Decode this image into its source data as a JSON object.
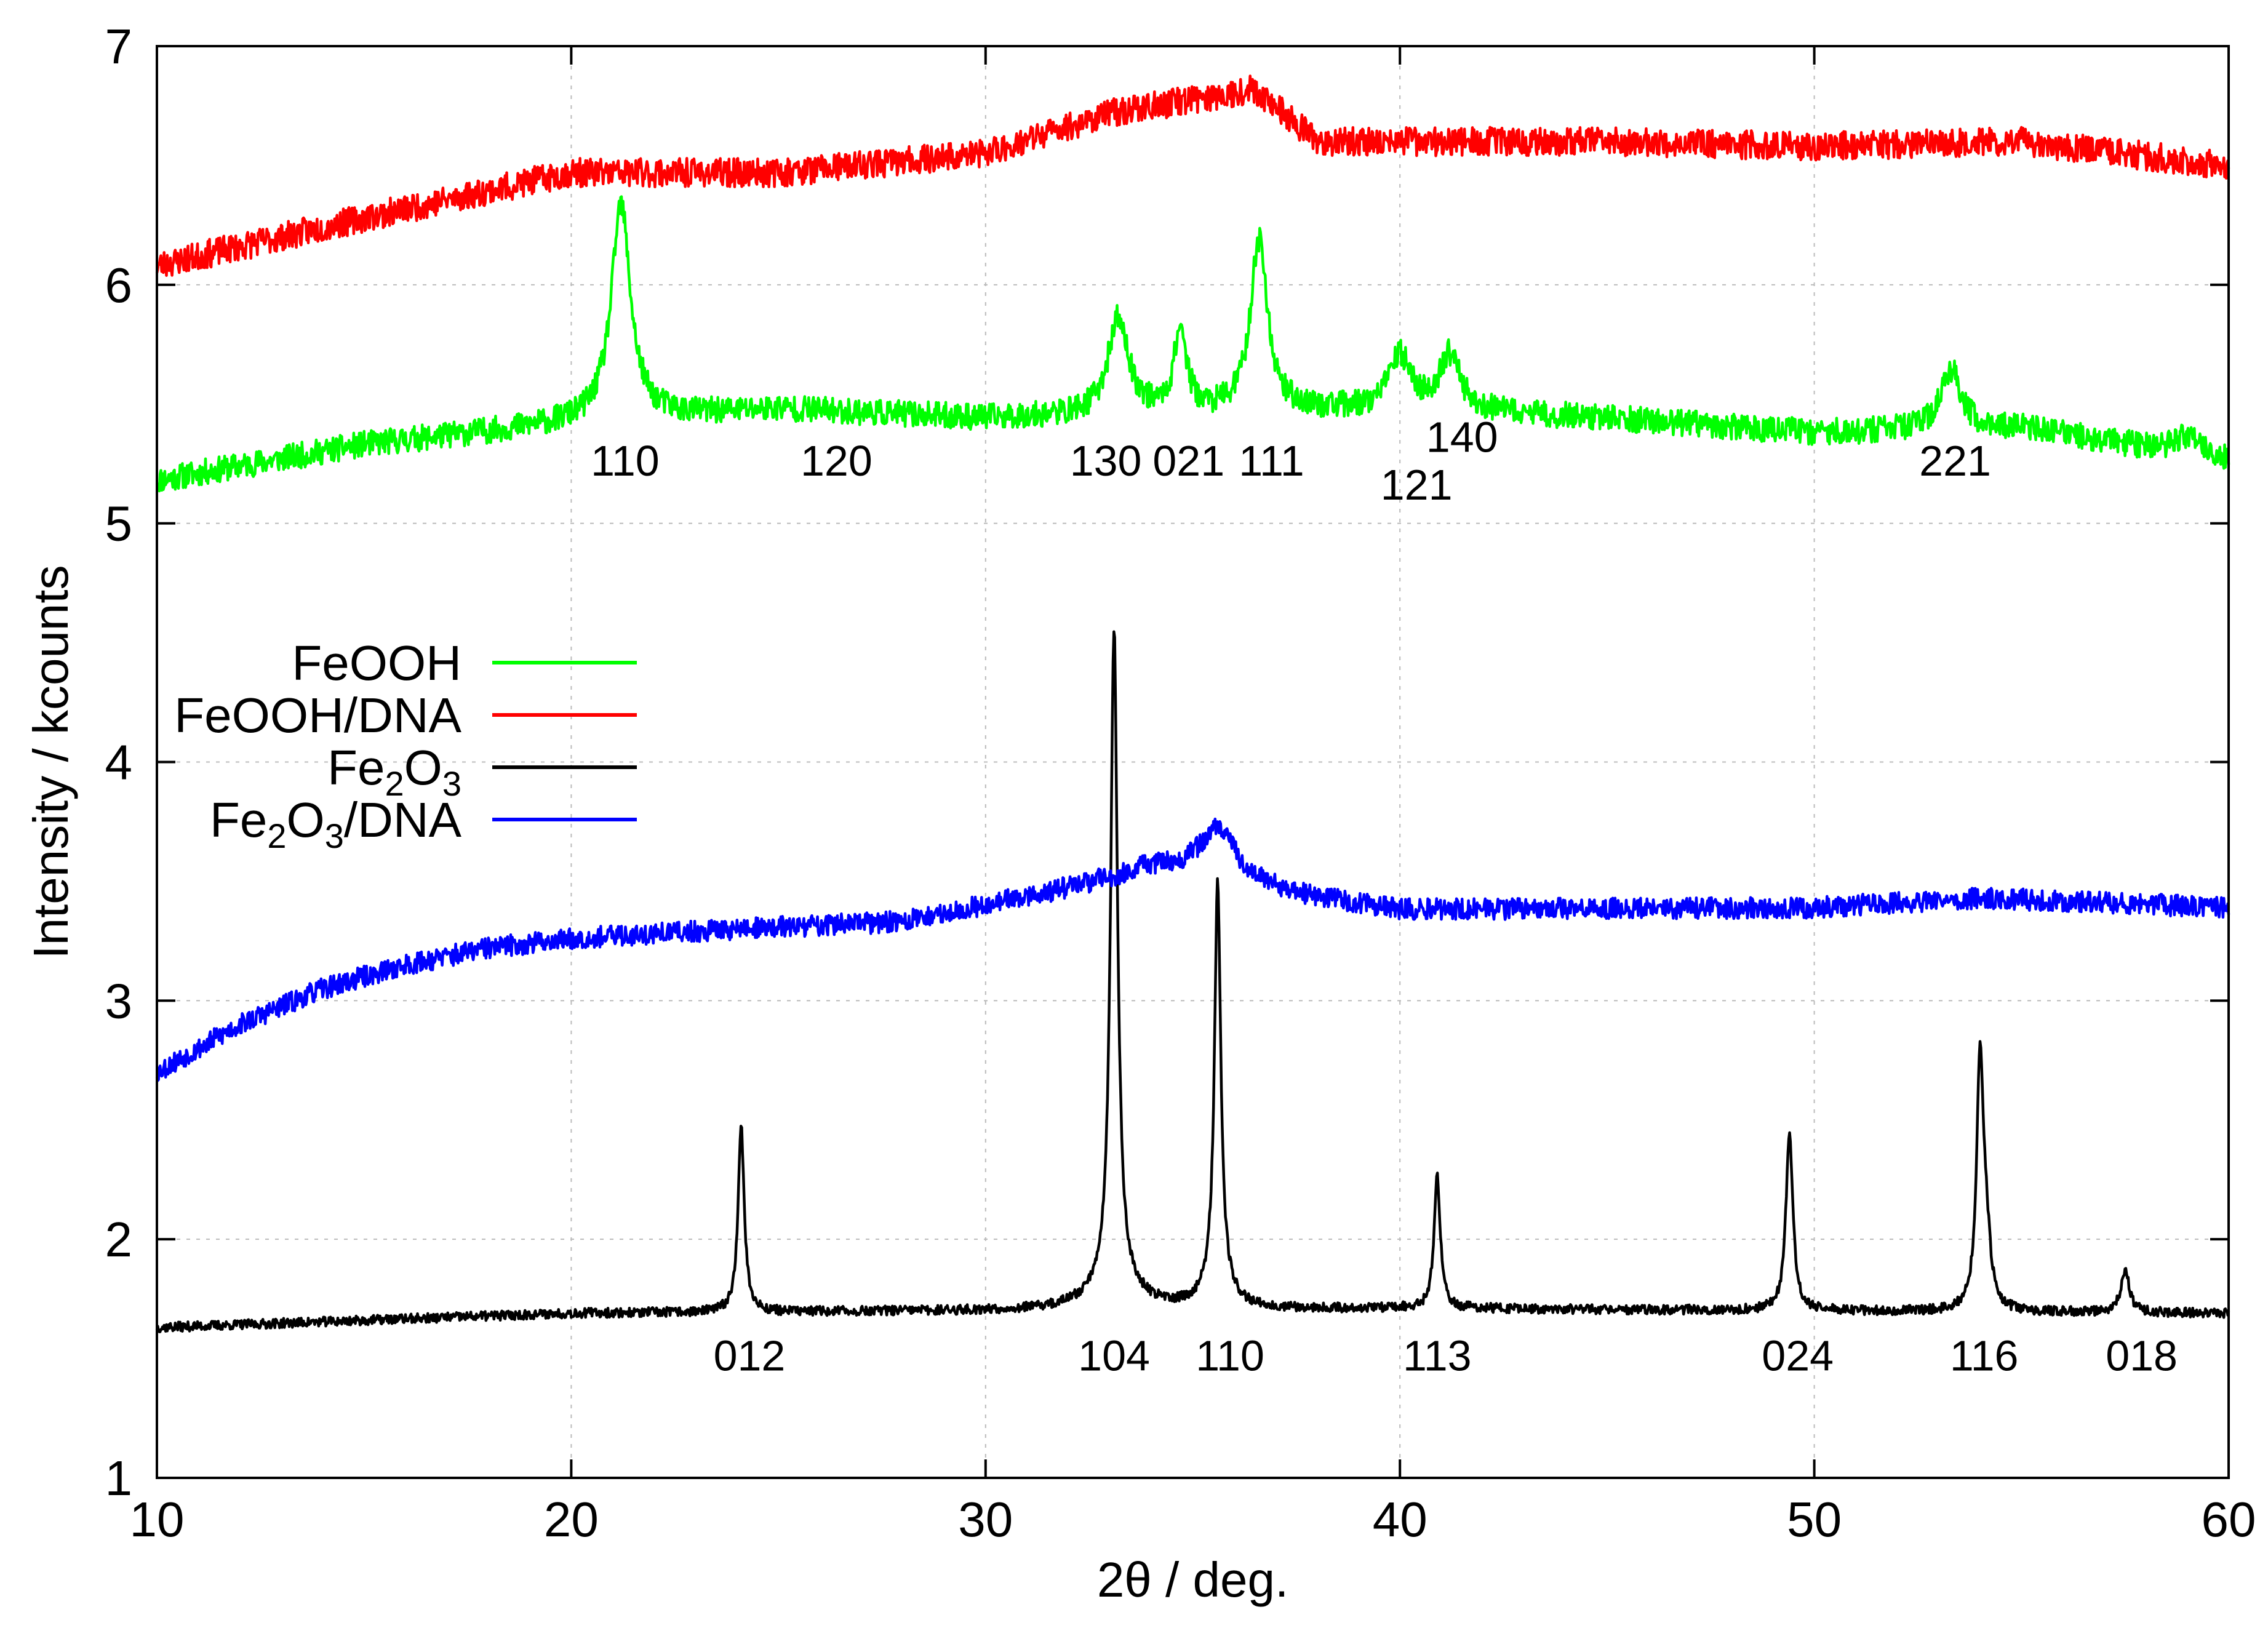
{
  "chart_data": {
    "type": "line",
    "xlabel": "2θ / deg.",
    "ylabel": "Intensity / kcounts",
    "xlim": [
      10,
      60
    ],
    "ylim": [
      1,
      7
    ],
    "xticks": [
      10,
      20,
      30,
      40,
      50,
      60
    ],
    "yticks": [
      1,
      2,
      3,
      4,
      5,
      6,
      7
    ],
    "grid": true,
    "legend_position": "middle-left",
    "series": [
      {
        "name": "FeOOH",
        "legend": {
          "base": "FeOOH",
          "sub1": "",
          "mid": "",
          "sub2": "",
          "tail": ""
        },
        "color": "#00ff00",
        "baseline": [
          [
            10,
            5.18
          ],
          [
            15,
            5.33
          ],
          [
            20,
            5.42
          ],
          [
            25,
            5.48
          ],
          [
            30,
            5.44
          ],
          [
            35,
            5.46
          ],
          [
            40,
            5.48
          ],
          [
            45,
            5.44
          ],
          [
            50,
            5.38
          ],
          [
            55,
            5.4
          ],
          [
            60,
            5.26
          ]
        ],
        "peaks": [
          [
            21.2,
            0.9,
            0.28
          ],
          [
            33.2,
            0.4,
            0.3
          ],
          [
            34.7,
            0.35,
            0.18
          ],
          [
            36.6,
            0.72,
            0.25
          ],
          [
            40.0,
            0.22,
            0.3
          ],
          [
            41.2,
            0.23,
            0.3
          ],
          [
            53.3,
            0.25,
            0.3
          ],
          [
            59.0,
            0.08,
            0.4
          ]
        ],
        "noise": 0.055,
        "seed": 11
      },
      {
        "name": "FeOOH/DNA",
        "legend": {
          "base": "FeOOH/DNA",
          "sub1": "",
          "mid": "",
          "sub2": "",
          "tail": ""
        },
        "color": "#ff0000",
        "baseline": [
          [
            10,
            6.08
          ],
          [
            15,
            6.28
          ],
          [
            20,
            6.47
          ],
          [
            25,
            6.47
          ],
          [
            30,
            6.55
          ],
          [
            33,
            6.72
          ],
          [
            36.5,
            6.82
          ],
          [
            38,
            6.6
          ],
          [
            42,
            6.6
          ],
          [
            45,
            6.6
          ],
          [
            50,
            6.58
          ],
          [
            55,
            6.6
          ],
          [
            60,
            6.5
          ]
        ],
        "peaks": [],
        "noise": 0.06,
        "seed": 23
      },
      {
        "name": "Fe2O3",
        "legend": {
          "base": "Fe",
          "sub1": "2",
          "mid": "O",
          "sub2": "3",
          "tail": ""
        },
        "color": "#000000",
        "baseline": [
          [
            10,
            1.63
          ],
          [
            20,
            1.69
          ],
          [
            30,
            1.7
          ],
          [
            40,
            1.71
          ],
          [
            50,
            1.7
          ],
          [
            60,
            1.69
          ]
        ],
        "peaks": [
          [
            24.1,
            0.78,
            0.09
          ],
          [
            33.1,
            2.74,
            0.1
          ],
          [
            33.1,
            0.12,
            0.6
          ],
          [
            35.6,
            1.7,
            0.09
          ],
          [
            35.6,
            0.1,
            0.35
          ],
          [
            40.9,
            0.55,
            0.09
          ],
          [
            49.4,
            0.75,
            0.1
          ],
          [
            54.0,
            1.03,
            0.1
          ],
          [
            54.15,
            0.25,
            0.12
          ],
          [
            57.5,
            0.18,
            0.12
          ]
        ],
        "noise": 0.02,
        "seed": 37
      },
      {
        "name": "Fe2O3/DNA",
        "legend": {
          "base": "Fe",
          "sub1": "2",
          "mid": "O",
          "sub2": "3",
          "tail": "/DNA"
        },
        "color": "#0000ff",
        "baseline": [
          [
            10,
            2.7
          ],
          [
            12,
            2.9
          ],
          [
            14,
            3.05
          ],
          [
            16,
            3.15
          ],
          [
            18,
            3.22
          ],
          [
            20,
            3.26
          ],
          [
            24,
            3.3
          ],
          [
            28,
            3.33
          ],
          [
            32,
            3.47
          ],
          [
            34,
            3.55
          ],
          [
            37,
            3.45
          ],
          [
            40,
            3.38
          ],
          [
            50,
            3.39
          ],
          [
            54,
            3.43
          ],
          [
            60,
            3.39
          ]
        ],
        "peaks": [
          [
            35.6,
            0.22,
            0.6
          ]
        ],
        "noise": 0.045,
        "seed": 53
      }
    ],
    "peak_labels": [
      {
        "text": "110",
        "x": 21.3,
        "y": 5.2
      },
      {
        "text": "120",
        "x": 26.4,
        "y": 5.2
      },
      {
        "text": "130",
        "x": 32.9,
        "y": 5.2
      },
      {
        "text": "021",
        "x": 34.9,
        "y": 5.2
      },
      {
        "text": "111",
        "x": 36.9,
        "y": 5.2
      },
      {
        "text": "121",
        "x": 40.4,
        "y": 5.1
      },
      {
        "text": "140",
        "x": 41.5,
        "y": 5.3
      },
      {
        "text": "221",
        "x": 53.4,
        "y": 5.2
      },
      {
        "text": "012",
        "x": 24.3,
        "y": 1.45
      },
      {
        "text": "104",
        "x": 33.1,
        "y": 1.45
      },
      {
        "text": "110",
        "x": 35.9,
        "y": 1.45
      },
      {
        "text": "113",
        "x": 40.9,
        "y": 1.45
      },
      {
        "text": "024",
        "x": 49.6,
        "y": 1.45
      },
      {
        "text": "116",
        "x": 54.1,
        "y": 1.45
      },
      {
        "text": "018",
        "x": 57.9,
        "y": 1.45
      }
    ]
  }
}
